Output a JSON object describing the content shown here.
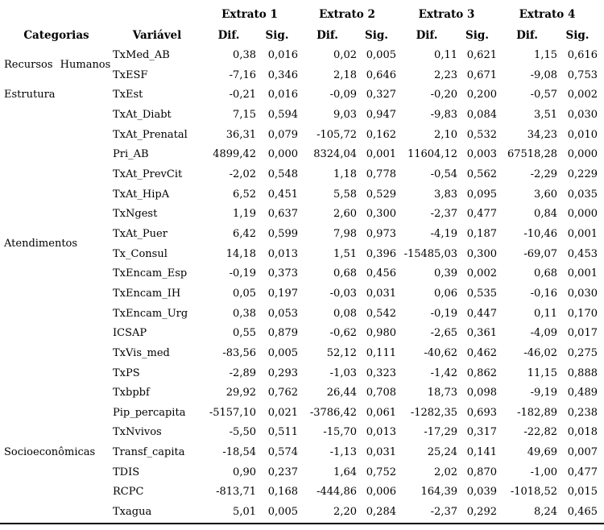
{
  "colors": {
    "text": "#000000",
    "background": "#ffffff",
    "rule": "#000000"
  },
  "table": {
    "group_headers": [
      {
        "label": "Extrato 1"
      },
      {
        "label": "Extrato 2"
      },
      {
        "label": "Extrato 3"
      },
      {
        "label": "Extrato 4"
      }
    ],
    "column_headers": {
      "categorias": "Categorias",
      "variavel": "Variável",
      "dif": "Dif.",
      "sig": "Sig."
    },
    "categories": [
      {
        "label": "Recursos Humanos",
        "rowspan": 2
      },
      {
        "label": "Estrutura",
        "rowspan": 1
      },
      {
        "label": "Atendimentos",
        "rowspan": 14
      },
      {
        "label": "Socioeconômicas",
        "rowspan": 7
      }
    ],
    "rows": [
      {
        "variavel": "TxMed_AB",
        "values": [
          "0,38",
          "0,016",
          "0,02",
          "0,005",
          "0,11",
          "0,621",
          "1,15",
          "0,616"
        ]
      },
      {
        "variavel": "TxESF",
        "values": [
          "-7,16",
          "0,346",
          "2,18",
          "0,646",
          "2,23",
          "0,671",
          "-9,08",
          "0,753"
        ]
      },
      {
        "variavel": "TxEst",
        "values": [
          "-0,21",
          "0,016",
          "-0,09",
          "0,327",
          "-0,20",
          "0,200",
          "-0,57",
          "0,002"
        ]
      },
      {
        "variavel": "TxAt_Diabt",
        "values": [
          "7,15",
          "0,594",
          "9,03",
          "0,947",
          "-9,83",
          "0,084",
          "3,51",
          "0,030"
        ]
      },
      {
        "variavel": "TxAt_Prenatal",
        "values": [
          "36,31",
          "0,079",
          "-105,72",
          "0,162",
          "2,10",
          "0,532",
          "34,23",
          "0,010"
        ]
      },
      {
        "variavel": "Pri_AB",
        "values": [
          "4899,42",
          "0,000",
          "8324,04",
          "0,001",
          "11604,12",
          "0,003",
          "67518,28",
          "0,000"
        ]
      },
      {
        "variavel": "TxAt_PrevCit",
        "values": [
          "-2,02",
          "0,548",
          "1,18",
          "0,778",
          "-0,54",
          "0,562",
          "-2,29",
          "0,229"
        ]
      },
      {
        "variavel": "TxAt_HipA",
        "values": [
          "6,52",
          "0,451",
          "5,58",
          "0,529",
          "3,83",
          "0,095",
          "3,60",
          "0,035"
        ]
      },
      {
        "variavel": "TxNgest",
        "values": [
          "1,19",
          "0,637",
          "2,60",
          "0,300",
          "-2,37",
          "0,477",
          "0,84",
          "0,000"
        ]
      },
      {
        "variavel": "TxAt_Puer",
        "values": [
          "6,42",
          "0,599",
          "7,98",
          "0,973",
          "-4,19",
          "0,187",
          "-10,46",
          "0,001"
        ]
      },
      {
        "variavel": "Tx_Consul",
        "values": [
          "14,18",
          "0,013",
          "1,51",
          "0,396",
          "-15485,03",
          "0,300",
          "-69,07",
          "0,453"
        ]
      },
      {
        "variavel": "TxEncam_Esp",
        "values": [
          "-0,19",
          "0,373",
          "0,68",
          "0,456",
          "0,39",
          "0,002",
          "0,68",
          "0,001"
        ]
      },
      {
        "variavel": "TxEncam_IH",
        "values": [
          "0,05",
          "0,197",
          "-0,03",
          "0,031",
          "0,06",
          "0,535",
          "-0,16",
          "0,030"
        ]
      },
      {
        "variavel": "TxEncam_Urg",
        "values": [
          "0,38",
          "0,053",
          "0,08",
          "0,542",
          "-0,19",
          "0,447",
          "0,11",
          "0,170"
        ]
      },
      {
        "variavel": "ICSAP",
        "values": [
          "0,55",
          "0,879",
          "-0,62",
          "0,980",
          "-2,65",
          "0,361",
          "-4,09",
          "0,017"
        ]
      },
      {
        "variavel": "TxVis_med",
        "values": [
          "-83,56",
          "0,005",
          "52,12",
          "0,111",
          "-40,62",
          "0,462",
          "-46,02",
          "0,275"
        ]
      },
      {
        "variavel": "TxPS",
        "values": [
          "-2,89",
          "0,293",
          "-1,03",
          "0,323",
          "-1,42",
          "0,862",
          "11,15",
          "0,888"
        ]
      },
      {
        "variavel": "Txbpbf",
        "values": [
          "29,92",
          "0,762",
          "26,44",
          "0,708",
          "18,73",
          "0,098",
          "-9,19",
          "0,489"
        ]
      },
      {
        "variavel": "Pip_percapita",
        "values": [
          "-5157,10",
          "0,021",
          "-3786,42",
          "0,061",
          "-1282,35",
          "0,693",
          "-182,89",
          "0,238"
        ]
      },
      {
        "variavel": "TxNvivos",
        "values": [
          "-5,50",
          "0,511",
          "-15,70",
          "0,013",
          "-17,29",
          "0,317",
          "-22,82",
          "0,018"
        ]
      },
      {
        "variavel": "Transf_capita",
        "values": [
          "-18,54",
          "0,574",
          "-1,13",
          "0,031",
          "25,24",
          "0,141",
          "49,69",
          "0,007"
        ]
      },
      {
        "variavel": "TDIS",
        "values": [
          "0,90",
          "0,237",
          "1,64",
          "0,752",
          "2,02",
          "0,870",
          "-1,00",
          "0,477"
        ]
      },
      {
        "variavel": "RCPC",
        "values": [
          "-813,71",
          "0,168",
          "-444,86",
          "0,006",
          "164,39",
          "0,039",
          "-1018,52",
          "0,015"
        ]
      },
      {
        "variavel": "Txagua",
        "values": [
          "5,01",
          "0,005",
          "2,20",
          "0,284",
          "-2,37",
          "0,292",
          "8,24",
          "0,465"
        ]
      }
    ]
  }
}
